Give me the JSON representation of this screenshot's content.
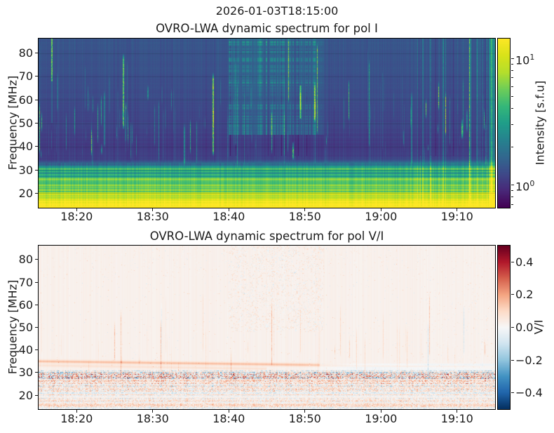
{
  "figure": {
    "suptitle": "2026-01-03T18:15:00",
    "background": "#ffffff",
    "text_color": "#1a1a1a"
  },
  "chart_data": [
    {
      "type": "heatmap",
      "id": "dynamic_spectrum_pol_I",
      "title": "OVRO-LWA dynamic spectrum for pol I",
      "ylabel": "Frequency [MHz]",
      "x_start": "18:15",
      "x_end": "19:15",
      "x_span_minutes": 60,
      "x_ticks": [
        {
          "minute": 5,
          "label": "18:20"
        },
        {
          "minute": 15,
          "label": "18:30"
        },
        {
          "minute": 25,
          "label": "18:40"
        },
        {
          "minute": 35,
          "label": "18:50"
        },
        {
          "minute": 45,
          "label": "19:00"
        },
        {
          "minute": 55,
          "label": "19:10"
        }
      ],
      "y_ticks": [
        20,
        30,
        40,
        50,
        60,
        70,
        80
      ],
      "y_range_mhz": [
        13.8,
        86.2
      ],
      "grid": "faint horizontal lines at y ticks",
      "colormap": "viridis",
      "colorbar": {
        "label": "Intensity [s.f.u]",
        "scale": "log",
        "range": [
          0.66,
          14.3
        ],
        "major_ticks": [
          {
            "value": 10,
            "base": "10",
            "exp": "1"
          },
          {
            "value": 1,
            "base": "10",
            "exp": "0"
          }
        ],
        "minor_ticks": [
          0.7,
          0.8,
          0.9,
          2,
          3,
          4,
          5,
          6,
          7,
          8,
          9
        ]
      },
      "features": {
        "description": "Solar radio dynamic spectrum: indigo background above ~34 MHz, dark purple band 33-45 MHz, bright green/teal RFI bands 16-33 MHz, saturated yellow below 16 MHz, many narrow vertical type-III-like bursts 35-70 MHz, dense hatched burst group 18:40-18:53 above 45 MHz, bright yellow burst near 18:49 at 52-66 MHz, bright green burst near 18:17 at 68-86 MHz, teal column at the right edge",
        "base_profile": [
          [
            13.8,
            0.98
          ],
          [
            15.5,
            0.95
          ],
          [
            17,
            0.84
          ],
          [
            20,
            0.68
          ],
          [
            23,
            0.6
          ],
          [
            26,
            0.55
          ],
          [
            29,
            0.5
          ],
          [
            31,
            0.44
          ],
          [
            32.5,
            0.3
          ],
          [
            34,
            0.175
          ],
          [
            40,
            0.155
          ],
          [
            46,
            0.175
          ],
          [
            55,
            0.195
          ],
          [
            65,
            0.21
          ],
          [
            75,
            0.225
          ],
          [
            86.2,
            0.24
          ]
        ],
        "rfi_rows": [
          {
            "f": 30.4,
            "w": 0.35,
            "a": 0.16
          },
          {
            "f": 29.1,
            "w": 0.25,
            "a": 0.1
          },
          {
            "f": 28.5,
            "w": 0.18,
            "a": -0.1
          },
          {
            "f": 27.8,
            "w": 0.3,
            "a": 0.13
          },
          {
            "f": 26.9,
            "w": 0.2,
            "a": -0.08
          },
          {
            "f": 26.3,
            "w": 0.3,
            "a": 0.1
          },
          {
            "f": 25.6,
            "w": 0.3,
            "a": 0.17
          },
          {
            "f": 24.6,
            "w": 0.25,
            "a": 0.1
          },
          {
            "f": 24.0,
            "w": 0.18,
            "a": -0.08
          },
          {
            "f": 23.5,
            "w": 0.3,
            "a": 0.2
          },
          {
            "f": 22.4,
            "w": 0.25,
            "a": 0.12
          },
          {
            "f": 21.2,
            "w": 0.3,
            "a": 0.17
          },
          {
            "f": 20.6,
            "w": 0.18,
            "a": -0.09
          },
          {
            "f": 20.1,
            "w": 0.25,
            "a": 0.12
          },
          {
            "f": 19.4,
            "w": 0.3,
            "a": 0.18
          },
          {
            "f": 18.3,
            "w": 0.25,
            "a": 0.1
          },
          {
            "f": 17.3,
            "w": 0.3,
            "a": 0.15
          },
          {
            "f": 16.2,
            "w": 0.35,
            "a": 0.12
          }
        ],
        "burst_count": 120,
        "left_cluster_count": 16,
        "tall_right_streaks": 26,
        "dense_patch": {
          "t_min": 25,
          "t_max": 37.5,
          "f_min": 45,
          "base": 0.04,
          "amp": 0.3
        },
        "dropout_columns": 16,
        "bright_burst": {
          "t": 34.4,
          "f_lo": 52,
          "f_hi": 66
        },
        "left_burst": {
          "t": 1.66,
          "f_lo": 68
        },
        "right_edge_band": {
          "t_min": 59.2,
          "boost": 0.2
        },
        "grid_alpha": 0.13
      }
    },
    {
      "type": "heatmap",
      "id": "dynamic_spectrum_pol_V_over_I",
      "title": "OVRO-LWA dynamic spectrum for pol V/I",
      "ylabel": "Frequency [MHz]",
      "x_start": "18:15",
      "x_end": "19:15",
      "x_span_minutes": 60,
      "x_ticks": [
        {
          "minute": 5,
          "label": "18:20"
        },
        {
          "minute": 15,
          "label": "18:30"
        },
        {
          "minute": 25,
          "label": "18:40"
        },
        {
          "minute": 35,
          "label": "18:50"
        },
        {
          "minute": 45,
          "label": "19:00"
        },
        {
          "minute": 55,
          "label": "19:10"
        }
      ],
      "y_ticks": [
        20,
        30,
        40,
        50,
        60,
        70,
        80
      ],
      "y_range_mhz": [
        13.8,
        86.2
      ],
      "grid": "none",
      "colormap": "RdBu_r",
      "colorbar": {
        "label": "V/I",
        "scale": "linear",
        "range": [
          -0.5,
          0.5
        ],
        "major_ticks": [
          {
            "value": 0.4,
            "label": "0.4"
          },
          {
            "value": 0.2,
            "label": "0.2"
          },
          {
            "value": 0.0,
            "label": "0.0"
          },
          {
            "value": -0.2,
            "label": "−0.2"
          },
          {
            "value": -0.4,
            "label": "−0.4"
          }
        ]
      },
      "features": {
        "description": "Circular polarization fraction map: near-white pale pink background, faint orange vertical burst traces, dense red/blue speckled RFI band below ~31 MHz (darkest 27-30.5 MHz), orange drifting lane near 34 MHz, pale blue band 31-34 MHz after 18:50, sparse speckle clusters above 48 MHz during the 18:40-18:53 burst group",
        "background": 0.024,
        "speckle_top_mhz": 31.2,
        "dense_band": [
          26.8,
          30.6
        ],
        "streak_count": 48,
        "orange_drift": {
          "f0": 34.9,
          "slope": -0.045,
          "amp": 0.13,
          "t_fade": 37
        },
        "second_drift": {
          "f0": 33.1,
          "slope": -0.05,
          "amp": 0.05,
          "t_max": 30
        },
        "blue_band": {
          "f_lo": 30.8,
          "f_hi": 33.9,
          "t_start": 34,
          "amp": 0.05
        },
        "red_row_mhz": 15.2
      }
    }
  ]
}
